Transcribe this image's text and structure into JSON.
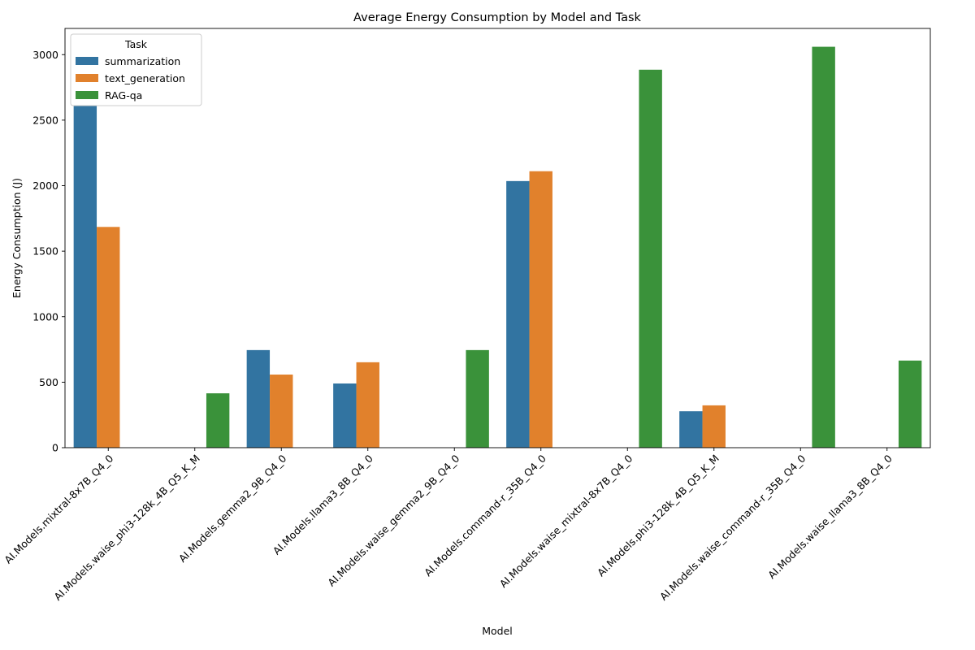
{
  "chart_data": {
    "type": "bar",
    "title": "Average Energy Consumption by Model and Task",
    "xlabel": "Model",
    "ylabel": "Energy Consumption (J)",
    "ylim": [
      0,
      3200
    ],
    "yticks": [
      0,
      500,
      1000,
      1500,
      2000,
      2500,
      3000
    ],
    "grid": false,
    "legend": {
      "title": "Task",
      "placement": "top-left"
    },
    "categories": [
      "AI.Models.mixtral-8x7B_Q4_0",
      "AI.Models.waise_phi3-128k_4B_Q5_K_M",
      "AI.Models.gemma2_9B_Q4_0",
      "AI.Models.llama3_8B_Q4_0",
      "AI.Models.waise_gemma2_9B_Q4_0",
      "AI.Models.command-r_35B_Q4_0",
      "AI.Models.waise_mixtral-8x7B_Q4_0",
      "AI.Models.phi3-128k_4B_Q5_K_M",
      "AI.Models.waise_command-r_35B_Q4_0",
      "AI.Models.waise_llama3_8B_Q4_0"
    ],
    "series": [
      {
        "name": "summarization",
        "color": "#3274a1",
        "values": [
          2610,
          null,
          745,
          490,
          null,
          2035,
          null,
          278,
          null,
          null
        ]
      },
      {
        "name": "text_generation",
        "color": "#e1812c",
        "values": [
          1685,
          null,
          558,
          652,
          null,
          2110,
          null,
          323,
          null,
          null
        ]
      },
      {
        "name": "RAG-qa",
        "color": "#3a923a",
        "values": [
          null,
          415,
          null,
          null,
          745,
          null,
          2885,
          null,
          3060,
          665
        ]
      }
    ]
  }
}
